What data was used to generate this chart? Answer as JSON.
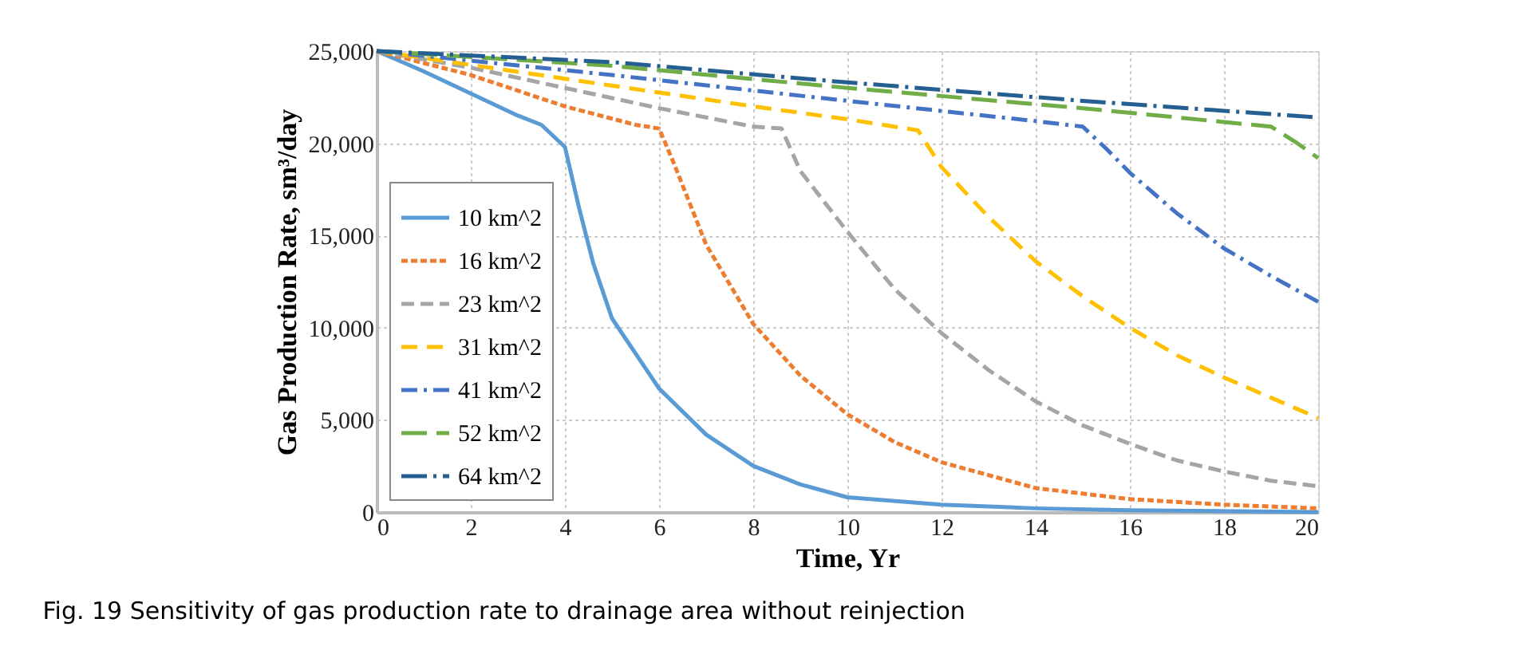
{
  "chart_data": {
    "type": "line",
    "xlabel": "Time, Yr",
    "ylabel": "Gas Production Rate, sm³/day",
    "annotations": [
      "Fig. 19  Sensitivity of gas production rate to drainage area without reinjection"
    ],
    "xlim": [
      0,
      20
    ],
    "xticks": [
      0,
      2,
      4,
      6,
      8,
      10,
      12,
      14,
      16,
      18,
      20
    ],
    "ylim": [
      0,
      25000
    ],
    "yticks": [
      {
        "value": 0,
        "label": "0"
      },
      {
        "value": 5000,
        "label": "5,000"
      },
      {
        "value": 10000,
        "label": "10,000"
      },
      {
        "value": 15000,
        "label": "15,000"
      },
      {
        "value": 20000,
        "label": "20,000"
      },
      {
        "value": 25000,
        "label": "25,000"
      }
    ],
    "grid": true,
    "legend": "bottom left",
    "marker": "none",
    "series": [
      {
        "name": "10 km^2",
        "color": "#5b9bd5",
        "line_style": "solid",
        "x": [
          0,
          1,
          2,
          3,
          3.5,
          4,
          4.3,
          4.6,
          5,
          6,
          7,
          8,
          9,
          10,
          12,
          14,
          16,
          20
        ],
        "values": [
          25000,
          23900,
          22700,
          21500,
          21000,
          19800,
          16500,
          13500,
          10500,
          6700,
          4200,
          2500,
          1500,
          800,
          400,
          200,
          100,
          0
        ]
      },
      {
        "name": "16 km^2",
        "color": "#ed7d31",
        "line_style": "dotted",
        "x": [
          0,
          2,
          4,
          5.5,
          6,
          6.3,
          7,
          8,
          9,
          10,
          11,
          12,
          14,
          16,
          18,
          20
        ],
        "values": [
          25000,
          23700,
          22000,
          21000,
          20800,
          19000,
          14500,
          10200,
          7400,
          5300,
          3800,
          2700,
          1300,
          700,
          400,
          200
        ]
      },
      {
        "name": "23 km^2",
        "color": "#a5a5a5",
        "line_style": "dashed",
        "x": [
          0,
          2,
          4,
          6,
          8,
          8.6,
          9,
          10,
          11,
          12,
          13,
          14,
          15,
          16,
          17,
          18,
          19,
          20
        ],
        "values": [
          25000,
          24100,
          23000,
          21900,
          20900,
          20800,
          18500,
          15200,
          12100,
          9700,
          7700,
          6000,
          4700,
          3700,
          2800,
          2200,
          1700,
          1400
        ]
      },
      {
        "name": "31 km^2",
        "color": "#ffc000",
        "line_style": "dashed",
        "x": [
          0,
          4,
          8,
          10,
          11.5,
          12,
          13,
          14,
          15,
          16,
          17,
          18,
          19,
          20
        ],
        "values": [
          25000,
          23500,
          22000,
          21300,
          20700,
          18700,
          16000,
          13600,
          11700,
          10000,
          8500,
          7300,
          6200,
          5100
        ]
      },
      {
        "name": "41 km^2",
        "color": "#4472c4",
        "line_style": "dashed",
        "x": [
          0,
          5,
          10,
          14,
          15,
          15.5,
          16,
          17,
          18,
          19,
          20
        ],
        "values": [
          25000,
          23700,
          22300,
          21200,
          20900,
          19700,
          18400,
          16200,
          14300,
          12800,
          11400
        ]
      },
      {
        "name": "52 km^2",
        "color": "#70ad47",
        "line_style": "dashed",
        "x": [
          0,
          5,
          10,
          15,
          19,
          19.5,
          20
        ],
        "values": [
          25000,
          24200,
          23000,
          21900,
          20900,
          20100,
          19200
        ]
      },
      {
        "name": "64 km^2",
        "color": "#255e91",
        "line_style": "dashed",
        "x": [
          0,
          5,
          10,
          15,
          20
        ],
        "values": [
          25000,
          24400,
          23300,
          22300,
          21400
        ]
      }
    ]
  }
}
